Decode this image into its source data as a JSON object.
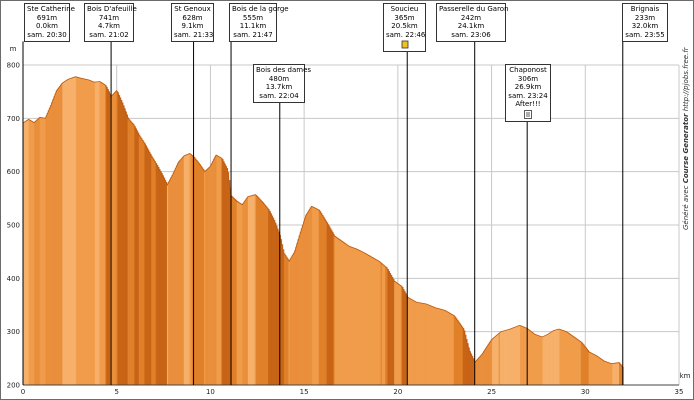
{
  "chart_data": {
    "type": "area",
    "title": "",
    "xlabel": "km",
    "ylabel": "m",
    "xlim": [
      0,
      35
    ],
    "ylim": [
      200,
      800
    ],
    "x_ticks": [
      0,
      5,
      10,
      15,
      20,
      25,
      30,
      35
    ],
    "y_ticks": [
      200,
      300,
      400,
      500,
      600,
      700,
      800
    ],
    "colors": {
      "fill_light": "#f9b46e",
      "fill_dark": "#c9610f",
      "grid": "#c8c8c8",
      "marker_line": "#000000"
    },
    "profile": [
      [
        0.0,
        691
      ],
      [
        0.3,
        698
      ],
      [
        0.6,
        692
      ],
      [
        0.9,
        702
      ],
      [
        1.2,
        700
      ],
      [
        1.5,
        725
      ],
      [
        1.8,
        752
      ],
      [
        2.1,
        766
      ],
      [
        2.4,
        773
      ],
      [
        2.8,
        778
      ],
      [
        3.1,
        775
      ],
      [
        3.5,
        772
      ],
      [
        3.8,
        768
      ],
      [
        4.1,
        769
      ],
      [
        4.4,
        762
      ],
      [
        4.7,
        741
      ],
      [
        5.0,
        752
      ],
      [
        5.3,
        728
      ],
      [
        5.6,
        700
      ],
      [
        5.9,
        688
      ],
      [
        6.2,
        668
      ],
      [
        6.5,
        652
      ],
      [
        6.8,
        632
      ],
      [
        7.1,
        615
      ],
      [
        7.4,
        596
      ],
      [
        7.7,
        575
      ],
      [
        8.0,
        595
      ],
      [
        8.3,
        618
      ],
      [
        8.6,
        630
      ],
      [
        8.9,
        634
      ],
      [
        9.1,
        628
      ],
      [
        9.4,
        615
      ],
      [
        9.7,
        600
      ],
      [
        10.0,
        610
      ],
      [
        10.3,
        631
      ],
      [
        10.6,
        625
      ],
      [
        10.9,
        604
      ],
      [
        11.1,
        555
      ],
      [
        11.4,
        545
      ],
      [
        11.7,
        538
      ],
      [
        12.0,
        553
      ],
      [
        12.4,
        557
      ],
      [
        12.8,
        542
      ],
      [
        13.1,
        529
      ],
      [
        13.4,
        508
      ],
      [
        13.7,
        480
      ],
      [
        13.9,
        448
      ],
      [
        14.2,
        432
      ],
      [
        14.5,
        450
      ],
      [
        14.8,
        485
      ],
      [
        15.1,
        518
      ],
      [
        15.4,
        535
      ],
      [
        15.8,
        528
      ],
      [
        16.2,
        505
      ],
      [
        16.6,
        480
      ],
      [
        17.0,
        470
      ],
      [
        17.4,
        460
      ],
      [
        17.8,
        455
      ],
      [
        18.2,
        448
      ],
      [
        18.6,
        440
      ],
      [
        19.0,
        432
      ],
      [
        19.4,
        420
      ],
      [
        19.8,
        395
      ],
      [
        20.2,
        385
      ],
      [
        20.5,
        365
      ],
      [
        21.0,
        355
      ],
      [
        21.5,
        352
      ],
      [
        22.0,
        345
      ],
      [
        22.5,
        340
      ],
      [
        23.0,
        330
      ],
      [
        23.5,
        305
      ],
      [
        23.8,
        265
      ],
      [
        24.0,
        250
      ],
      [
        24.1,
        242
      ],
      [
        24.5,
        258
      ],
      [
        25.0,
        285
      ],
      [
        25.5,
        300
      ],
      [
        26.0,
        305
      ],
      [
        26.5,
        312
      ],
      [
        26.9,
        306
      ],
      [
        27.3,
        295
      ],
      [
        27.7,
        290
      ],
      [
        28.0,
        295
      ],
      [
        28.3,
        302
      ],
      [
        28.6,
        305
      ],
      [
        29.0,
        300
      ],
      [
        29.4,
        290
      ],
      [
        29.8,
        280
      ],
      [
        30.2,
        262
      ],
      [
        30.6,
        255
      ],
      [
        31.0,
        245
      ],
      [
        31.4,
        240
      ],
      [
        31.8,
        242
      ],
      [
        32.0,
        233
      ]
    ],
    "waypoints": [
      {
        "name": "Ste Catherine",
        "alt": "691m",
        "dist": "0.0km",
        "time": "sam. 20:30",
        "km": 0.0,
        "extra": "",
        "icon": ""
      },
      {
        "name": "Bois D'afeuille",
        "alt": "741m",
        "dist": "4.7km",
        "time": "sam. 21:02",
        "km": 4.7,
        "extra": "",
        "icon": ""
      },
      {
        "name": "St Genoux",
        "alt": "628m",
        "dist": "9.1km",
        "time": "sam. 21:33",
        "km": 9.1,
        "extra": "",
        "icon": ""
      },
      {
        "name": "Bois de la gorge",
        "alt": "555m",
        "dist": "11.1km",
        "time": "sam. 21:47",
        "km": 11.1,
        "extra": "",
        "icon": ""
      },
      {
        "name": "Bois des dames",
        "alt": "480m",
        "dist": "13.7km",
        "time": "sam. 22:04",
        "km": 13.7,
        "extra": "",
        "icon": ""
      },
      {
        "name": "Soucieu",
        "alt": "365m",
        "dist": "20.5km",
        "time": "sam. 22:46",
        "km": 20.5,
        "extra": "",
        "icon": "drink-icon"
      },
      {
        "name": "Passerelle du Garon",
        "alt": "242m",
        "dist": "24.1km",
        "time": "sam. 23:06",
        "km": 24.1,
        "extra": "",
        "icon": ""
      },
      {
        "name": "Chaponost",
        "alt": "306m",
        "dist": "26.9km",
        "time": "sam. 23:24",
        "km": 26.9,
        "extra": "After!!!",
        "icon": "food-icon"
      },
      {
        "name": "Brignais",
        "alt": "233m",
        "dist": "32.0km",
        "time": "sam. 23:55",
        "km": 32.0,
        "extra": "",
        "icon": ""
      }
    ]
  },
  "credit": {
    "prefix": "Généré avec",
    "brand": "Course Generator",
    "url": "http://pjobs.free.fr"
  }
}
